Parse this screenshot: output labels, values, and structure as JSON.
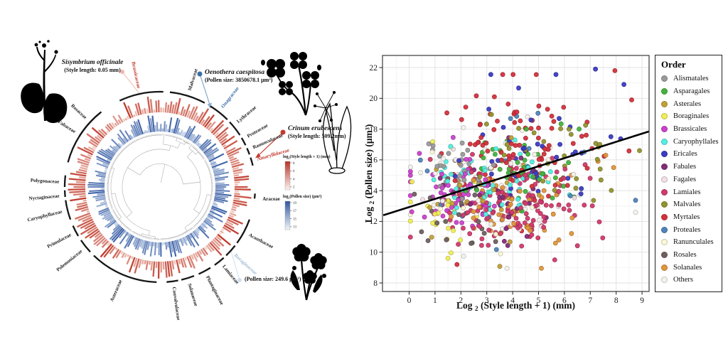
{
  "page": {
    "background": "#ffffff"
  },
  "left_panel": {
    "annotations": {
      "sisymbrium": {
        "name": "Sisymbrium officinale",
        "detail": "(Style length: 0.05 mm)",
        "dot_color": "#f2b4ae",
        "line_color": "#f3c8c3"
      },
      "oenothera": {
        "name": "Oenothera caespitosa",
        "detail": "(Pollen size: 3850678.1 μm³)",
        "dot_color": "#3c6ea5",
        "line_color": "#8fb0cf"
      },
      "crinum": {
        "name": "Crinum erubescens",
        "detail": "(Style length: 509.2mm)",
        "dot_color": "#c23b2e",
        "line_color": "#c23b2e"
      },
      "boraginaceae_species": {
        "detail": "(Pollen size: 249.6 μm³)",
        "dot_color": "#cfe0ef",
        "line_color": "#d8e6f2"
      }
    },
    "color_legends": {
      "style": {
        "title_pre": "log",
        "title_sub": "2",
        "title_rest": "(Style length + 1) (mm)",
        "ticks": [
          "8",
          "6",
          "4",
          "2"
        ],
        "top_color": "#b73226",
        "bottom_color": "#fdf2ee"
      },
      "pollen": {
        "title_pre": "log",
        "title_sub": "2",
        "title_rest": "(Pollen size) (μm³)",
        "ticks": [
          "19",
          "17",
          "15",
          "13"
        ],
        "top_color": "#2f569e",
        "bottom_color": "#f2f5fa"
      }
    },
    "tree": {
      "leaf_count": 210,
      "branch_color": "#b4b4b4",
      "style_ring_colors": [
        "#f8ded5",
        "#bf3a2b"
      ],
      "pollen_ring_colors": [
        "#dde7f3",
        "#3f63a8"
      ]
    },
    "families": [
      {
        "name": "Rosaceae",
        "angle": -47,
        "color": "#1a1a1a",
        "arc": [
          -58,
          -38
        ]
      },
      {
        "name": "Brassicaceae",
        "angle": -12,
        "color": "#c0392b",
        "arc": [
          -25,
          2
        ]
      },
      {
        "name": "Malvaceae",
        "angle": 17,
        "color": "#1a1a1a",
        "arc": [
          6,
          28
        ]
      },
      {
        "name": "Onagraceae",
        "angle": 38,
        "color": "#3a6ea8",
        "arc": [
          32,
          45
        ]
      },
      {
        "name": "Lythraceae",
        "angle": 50,
        "color": "#1a1a1a",
        "arc": [
          47,
          57
        ]
      },
      {
        "name": "Proteaceae",
        "angle": 60,
        "color": "#1a1a1a",
        "arc": [
          59,
          64
        ]
      },
      {
        "name": "Ranunculaceae",
        "angle": 67,
        "color": "#1a1a1a",
        "arc": [
          66,
          70
        ]
      },
      {
        "name": "Amaryllidaceae",
        "angle": 74,
        "color": "#c0392b",
        "arc": [
          72,
          77
        ]
      },
      {
        "name": "Araceae",
        "angle": 96,
        "color": "#1a1a1a",
        "arc": [
          94,
          97
        ],
        "horizontal": true
      },
      {
        "name": "Acanthaceae",
        "angle": 118,
        "color": "#1a1a1a",
        "arc": [
          110,
          126
        ]
      },
      {
        "name": "Boraginaceae",
        "angle": 132,
        "color": "#a3bdd8",
        "arc": [
          128,
          136
        ]
      },
      {
        "name": "Lamiaceae",
        "angle": 141,
        "color": "#1a1a1a",
        "arc": [
          138,
          145
        ]
      },
      {
        "name": "Plantaginaceae",
        "angle": 152,
        "color": "#1a1a1a",
        "arc": [
          148,
          156
        ]
      },
      {
        "name": "Solanaceae",
        "angle": 163,
        "color": "#1a1a1a",
        "arc": [
          159,
          167
        ]
      },
      {
        "name": "Convolvulaceae",
        "angle": 172,
        "color": "#1a1a1a",
        "arc": [
          169,
          176
        ]
      },
      {
        "name": "Asteraceae",
        "angle": 203,
        "color": "#1a1a1a",
        "arc": [
          182,
          224
        ]
      },
      {
        "name": "Polemoniaceae",
        "angle": 231,
        "color": "#1a1a1a",
        "arc": [
          227,
          236
        ]
      },
      {
        "name": "Primulaceae",
        "angle": 242,
        "color": "#1a1a1a",
        "arc": [
          239,
          246
        ]
      },
      {
        "name": "Caryophyllaceae",
        "angle": 256,
        "color": "#1a1a1a",
        "arc": [
          250,
          262
        ]
      },
      {
        "name": "Nyctaginaceae",
        "angle": 265,
        "color": "#1a1a1a",
        "arc": [
          264,
          268
        ]
      },
      {
        "name": "Polygonaceae",
        "angle": 273,
        "color": "#1a1a1a",
        "arc": [
          270,
          277
        ]
      },
      {
        "name": "Fabaceae",
        "angle": 303,
        "color": "#1a1a1a",
        "arc": [
          285,
          321
        ]
      }
    ]
  },
  "chart_data": {
    "type": "scatter",
    "xlabel": {
      "pre": "Log ",
      "sub": "2",
      "rest": " (Style length + 1) (mm)"
    },
    "ylabel": {
      "pre": "Log ",
      "sub": "2",
      "rest": " (Pollen size) (μm³)"
    },
    "xlim": [
      -1.0,
      9.3
    ],
    "ylim": [
      7.5,
      22.8
    ],
    "x_ticks": [
      0,
      1,
      2,
      3,
      4,
      5,
      6,
      7,
      8,
      9
    ],
    "y_ticks": [
      8,
      10,
      12,
      14,
      16,
      18,
      20,
      22
    ],
    "grid": true,
    "legend_title": "Order",
    "legend_position": "right",
    "regression_line": {
      "x1": -1.0,
      "y1": 12.4,
      "x2": 9.27,
      "y2": 17.85,
      "color": "#000000"
    },
    "series": [
      {
        "name": "Alismatales",
        "color": "#9a9a9a",
        "n": 28,
        "center": [
          1.6,
          15.5
        ],
        "spread": [
          0.55,
          1.0
        ]
      },
      {
        "name": "Asparagales",
        "color": "#44b33c",
        "n": 45,
        "center": [
          4.5,
          15.6
        ],
        "spread": [
          1.1,
          1.3
        ]
      },
      {
        "name": "Asterales",
        "color": "#c2a038",
        "n": 25,
        "center": [
          3.3,
          13.8
        ],
        "spread": [
          1.3,
          1.5
        ]
      },
      {
        "name": "Boraginales",
        "color": "#f0ee55",
        "n": 22,
        "center": [
          1.6,
          12.6
        ],
        "spread": [
          0.8,
          1.4
        ]
      },
      {
        "name": "Brassicales",
        "color": "#cb42cb",
        "n": 60,
        "center": [
          1.9,
          13.6
        ],
        "spread": [
          0.9,
          1.2
        ]
      },
      {
        "name": "Caryophyllales",
        "color": "#52efe2",
        "n": 55,
        "center": [
          3.1,
          14.7
        ],
        "spread": [
          1.2,
          1.2
        ]
      },
      {
        "name": "Ericales",
        "color": "#3b3bc4",
        "n": 42,
        "center": [
          4.8,
          16.5
        ],
        "spread": [
          1.5,
          2.1
        ]
      },
      {
        "name": "Fabales",
        "color": "#842c78",
        "n": 40,
        "center": [
          3.4,
          13.6
        ],
        "spread": [
          1.0,
          1.4
        ]
      },
      {
        "name": "Fagales",
        "color": "#f2dfe7",
        "n": 10,
        "center": [
          3.0,
          14.2
        ],
        "spread": [
          1.4,
          1.5
        ]
      },
      {
        "name": "Lamiales",
        "color": "#d13a6b",
        "n": 135,
        "center": [
          3.9,
          13.1
        ],
        "spread": [
          1.2,
          1.6
        ]
      },
      {
        "name": "Malvales",
        "color": "#94942f",
        "n": 30,
        "center": [
          5.5,
          16.5
        ],
        "spread": [
          1.4,
          1.5
        ]
      },
      {
        "name": "Myrtales",
        "color": "#d4303c",
        "n": 88,
        "center": [
          4.2,
          17.4
        ],
        "spread": [
          1.5,
          1.9
        ]
      },
      {
        "name": "Proteales",
        "color": "#4f83ba",
        "n": 15,
        "center": [
          4.0,
          15.2
        ],
        "spread": [
          1.8,
          2.0
        ]
      },
      {
        "name": "Ranunculales",
        "color": "#fbf8d6",
        "n": 15,
        "center": [
          2.6,
          13.6
        ],
        "spread": [
          1.3,
          1.5
        ]
      },
      {
        "name": "Rosales",
        "color": "#6f6060",
        "n": 22,
        "center": [
          1.8,
          12.6
        ],
        "spread": [
          0.9,
          1.3
        ]
      },
      {
        "name": "Solanales",
        "color": "#e2953a",
        "n": 55,
        "center": [
          3.9,
          13.2
        ],
        "spread": [
          1.4,
          1.7
        ]
      },
      {
        "name": "Others",
        "color": "#f4f2ec",
        "n": 40,
        "center": [
          3.6,
          14.6
        ],
        "spread": [
          1.8,
          2.2
        ]
      }
    ],
    "extra_points": [
      {
        "order": "Ericales",
        "x": 7.2,
        "y": 21.9
      },
      {
        "order": "Myrtales",
        "x": 7.95,
        "y": 21.8
      },
      {
        "order": "Ericales",
        "x": 8.3,
        "y": 20.9
      },
      {
        "order": "Myrtales",
        "x": 8.6,
        "y": 19.9
      },
      {
        "order": "Solanales",
        "x": 7.3,
        "y": 15.9
      },
      {
        "order": "Solanales",
        "x": 7.6,
        "y": 16.3
      },
      {
        "order": "Solanales",
        "x": 7.9,
        "y": 15.5
      },
      {
        "order": "Malvales",
        "x": 8.9,
        "y": 16.6
      },
      {
        "order": "Myrtales",
        "x": 1.85,
        "y": 9.2
      },
      {
        "order": "Boraginales",
        "x": 1.5,
        "y": 9.6
      }
    ]
  }
}
